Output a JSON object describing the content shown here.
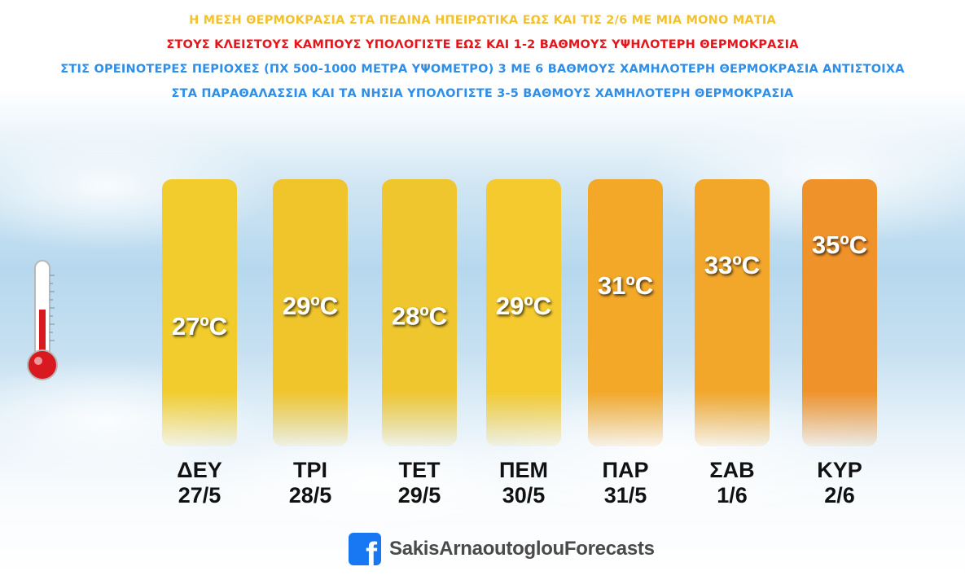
{
  "headlines": [
    {
      "text": "Η ΜΕΣΗ ΘΕΡΜΟΚΡΑΣΙΑ ΣΤΑ ΠΕΔΙΝΑ ΗΠΕΙΡΩΤΙΚΑ ΕΩΣ ΚΑΙ ΤΙΣ 2/6 ΜΕ ΜΙΑ ΜΟΝΟ ΜΑΤΙΑ",
      "color": "#f2c12e"
    },
    {
      "text": "ΣΤΟΥΣ ΚΛΕΙΣΤΟΥΣ ΚΑΜΠΟΥΣ ΥΠΟΛΟΓΙΣΤΕ ΕΩΣ ΚΑΙ 1-2 ΒΑΘΜΟΥΣ ΥΨΗΛΟΤΕΡΗ ΘΕΡΜΟΚΡΑΣΙΑ",
      "color": "#e8141b"
    },
    {
      "text": "ΣΤΙΣ ΟΡΕΙΝΟΤΕΡΕΣ ΠΕΡΙΟΧΕΣ (ΠΧ 500-1000 ΜΕΤΡΑ ΥΨΟΜΕΤΡΟ) 3 ΜΕ 6 ΒΑΘΜΟΥΣ ΧΑΜΗΛΟΤΕΡΗ ΘΕΡΜΟΚΡΑΣΙΑ ΑΝΤΙΣΤΟΙΧΑ",
      "color": "#2e8ee8"
    },
    {
      "text": "ΣΤΑ ΠΑΡΑΘΑΛΑΣΣΙΑ ΚΑΙ ΤΑ ΝΗΣΙΑ ΥΠΟΛΟΓΙΣΤΕ 3-5 ΒΑΘΜΟΥΣ ΧΑΜΗΛΟΤΕΡΗ ΘΕΡΜΟΚΡΑΣΙΑ",
      "color": "#2e8ee8"
    }
  ],
  "chart_data": {
    "type": "bar",
    "unit": "ºC",
    "categories": [
      {
        "day": "ΔΕΥ",
        "date": "27/5"
      },
      {
        "day": "ΤΡΙ",
        "date": "28/5"
      },
      {
        "day": "ΤΕΤ",
        "date": "29/5"
      },
      {
        "day": "ΠΕΜ",
        "date": "30/5"
      },
      {
        "day": "ΠΑΡ",
        "date": "31/5"
      },
      {
        "day": "ΣΑΒ",
        "date": "1/6"
      },
      {
        "day": "ΚΥΡ",
        "date": "2/6"
      }
    ],
    "values": [
      27,
      29,
      28,
      29,
      31,
      33,
      35
    ],
    "bar_colors": [
      "#f2cc2c",
      "#f0c52c",
      "#efc62e",
      "#f4ca2e",
      "#f3a828",
      "#f2a72b",
      "#f0922a"
    ],
    "grid": false,
    "legend": "none"
  },
  "icons": {
    "thermometer": "thermometer-icon",
    "facebook": "facebook-icon"
  },
  "footer": {
    "fb_glyph": "f",
    "name": "SakisArnaoutoglouForecasts"
  },
  "colors": {
    "day_label": "#111111",
    "value_label": "#ffffff",
    "thermometer_red": "#d8191f"
  }
}
